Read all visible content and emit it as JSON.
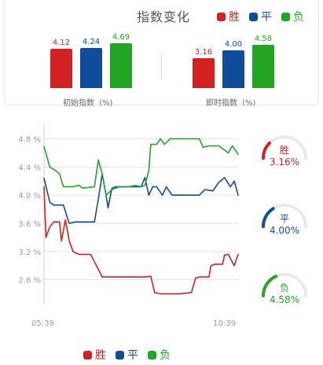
{
  "header": {
    "title": "指数变化"
  },
  "legend": [
    {
      "label": "胜",
      "color": "#d32020"
    },
    {
      "label": "平",
      "color": "#0f4c9c"
    },
    {
      "label": "负",
      "color": "#23a523"
    }
  ],
  "bars": {
    "initial": {
      "caption": "初始指数（%)",
      "items": [
        {
          "label": "4.12",
          "value": 4.12,
          "color": "#d32020"
        },
        {
          "label": "4.24",
          "value": 4.24,
          "color": "#0f4c9c"
        },
        {
          "label": "4.69",
          "value": 4.69,
          "color": "#23a523"
        }
      ]
    },
    "instant": {
      "caption": "即时指数（%)",
      "items": [
        {
          "label": "3.16",
          "value": 3.16,
          "color": "#d32020"
        },
        {
          "label": "4.00",
          "value": 4.0,
          "color": "#0f4c9c"
        },
        {
          "label": "4.58",
          "value": 4.58,
          "color": "#23a523"
        }
      ]
    }
  },
  "chart_data": {
    "type": "line",
    "x_tick_labels": [
      "05:39",
      "10:39"
    ],
    "y_ticks": [
      2.8,
      3.2,
      3.6,
      4.0,
      4.4,
      4.8
    ],
    "y_tick_labels": [
      "2.8 %",
      "3.2 %",
      "3.6 %",
      "4.0 %",
      "4.4 %",
      "4.8 %"
    ],
    "ylim": [
      2.45,
      4.95
    ],
    "x_range": [
      0,
      100
    ],
    "grid": true,
    "series": [
      {
        "name": "胜",
        "color": "#d32020",
        "points": [
          [
            0,
            4.12
          ],
          [
            1,
            3.4
          ],
          [
            3,
            3.55
          ],
          [
            5,
            3.62
          ],
          [
            8,
            3.62
          ],
          [
            9,
            3.35
          ],
          [
            11,
            3.65
          ],
          [
            13,
            3.35
          ],
          [
            15,
            3.2
          ],
          [
            18,
            3.16
          ],
          [
            24,
            3.16
          ],
          [
            27,
            3.0
          ],
          [
            30,
            2.84
          ],
          [
            40,
            2.84
          ],
          [
            52,
            2.84
          ],
          [
            55,
            2.85
          ],
          [
            57,
            2.62
          ],
          [
            60,
            2.6
          ],
          [
            70,
            2.6
          ],
          [
            76,
            2.62
          ],
          [
            78,
            2.82
          ],
          [
            80,
            2.84
          ],
          [
            85,
            2.84
          ],
          [
            86,
            3.0
          ],
          [
            88,
            3.02
          ],
          [
            92,
            3.02
          ],
          [
            93,
            3.15
          ],
          [
            95,
            3.16
          ],
          [
            97,
            3.05
          ],
          [
            98,
            3.0
          ],
          [
            100,
            3.16
          ]
        ]
      },
      {
        "name": "平",
        "color": "#0f4c9c",
        "points": [
          [
            0,
            4.24
          ],
          [
            3,
            3.9
          ],
          [
            5,
            3.86
          ],
          [
            10,
            3.86
          ],
          [
            13,
            3.6
          ],
          [
            16,
            3.62
          ],
          [
            26,
            3.62
          ],
          [
            28,
            3.95
          ],
          [
            30,
            4.3
          ],
          [
            32,
            4.0
          ],
          [
            33,
            3.82
          ],
          [
            35,
            4.1
          ],
          [
            37,
            4.12
          ],
          [
            50,
            4.12
          ],
          [
            52,
            4.25
          ],
          [
            54,
            4.0
          ],
          [
            56,
            4.12
          ],
          [
            58,
            4.12
          ],
          [
            61,
            4.0
          ],
          [
            63,
            4.12
          ],
          [
            66,
            4.0
          ],
          [
            75,
            4.0
          ],
          [
            80,
            4.0
          ],
          [
            83,
            4.08
          ],
          [
            87,
            4.06
          ],
          [
            90,
            4.18
          ],
          [
            93,
            4.25
          ],
          [
            96,
            4.12
          ],
          [
            98,
            4.2
          ],
          [
            100,
            4.0
          ]
        ]
      },
      {
        "name": "负",
        "color": "#23a523",
        "points": [
          [
            0,
            4.69
          ],
          [
            3,
            4.4
          ],
          [
            6,
            4.35
          ],
          [
            8,
            4.3
          ],
          [
            10,
            4.12
          ],
          [
            15,
            4.12
          ],
          [
            18,
            4.14
          ],
          [
            20,
            4.1
          ],
          [
            26,
            4.12
          ],
          [
            28,
            4.5
          ],
          [
            30,
            4.3
          ],
          [
            32,
            4.0
          ],
          [
            35,
            4.08
          ],
          [
            39,
            4.12
          ],
          [
            44,
            4.12
          ],
          [
            47,
            4.14
          ],
          [
            50,
            4.12
          ],
          [
            52,
            4.14
          ],
          [
            54,
            4.35
          ],
          [
            55,
            4.72
          ],
          [
            58,
            4.72
          ],
          [
            60,
            4.8
          ],
          [
            62,
            4.72
          ],
          [
            65,
            4.8
          ],
          [
            80,
            4.8
          ],
          [
            82,
            4.68
          ],
          [
            85,
            4.7
          ],
          [
            90,
            4.7
          ],
          [
            95,
            4.6
          ],
          [
            97,
            4.7
          ],
          [
            100,
            4.58
          ]
        ]
      }
    ]
  },
  "gauges": [
    {
      "label": "胜",
      "value_label": "3.16%",
      "fraction": 0.25,
      "color": "#d32020"
    },
    {
      "label": "平",
      "value_label": "4.00%",
      "fraction": 0.32,
      "color": "#0f4c9c"
    },
    {
      "label": "负",
      "value_label": "4.58%",
      "fraction": 0.37,
      "color": "#23a523"
    }
  ]
}
